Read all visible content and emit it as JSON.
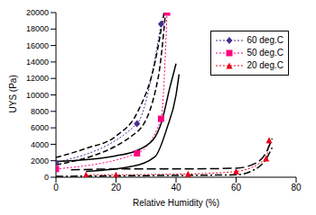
{
  "chart_data": {
    "type": "line",
    "x_label": "Relative Humidity (%)",
    "y_label": "UYS (Pa)",
    "xlim": [
      0,
      80
    ],
    "xticks": [
      0,
      20,
      40,
      60,
      80
    ],
    "ylim": [
      0,
      20000
    ],
    "yticks": [
      0,
      2000,
      4000,
      6000,
      8000,
      10000,
      12000,
      14000,
      16000,
      18000,
      20000
    ],
    "legend": "upper right",
    "grid": false,
    "series": [
      {
        "name": "60 deg.C",
        "color": "#4b2d8f",
        "marker": "diamond",
        "line_style": "dotted",
        "x": [
          0,
          27,
          35
        ],
        "values": [
          1800,
          6500,
          18600
        ]
      },
      {
        "name": "50 deg.C",
        "color": "#ff0080",
        "marker": "square",
        "line_style": "dotted",
        "x": [
          0,
          27,
          35,
          37
        ],
        "values": [
          1000,
          2900,
          7100,
          20000
        ]
      },
      {
        "name": "20 deg.C",
        "color": "#e8001c",
        "marker": "triangle",
        "line_style": "dotted",
        "x": [
          10,
          20,
          44,
          60,
          70,
          71
        ],
        "values": [
          300,
          300,
          400,
          700,
          2300,
          4500
        ]
      },
      {
        "color": "#000000",
        "line_style": "dashed",
        "x": [
          0,
          10,
          20,
          27,
          33,
          36
        ],
        "values": [
          2400,
          3500,
          5000,
          7800,
          14000,
          20000
        ]
      },
      {
        "color": "#000000",
        "line_style": "dashed",
        "x": [
          0,
          27,
          34,
          36.5
        ],
        "values": [
          1500,
          5500,
          12000,
          20000
        ]
      },
      {
        "color": "#000000",
        "line_style": "solid",
        "x": [
          0,
          20,
          30,
          35,
          38,
          40
        ],
        "values": [
          1900,
          2600,
          3800,
          6500,
          11000,
          13800
        ]
      },
      {
        "color": "#000000",
        "line_style": "solid",
        "x": [
          10,
          25,
          33,
          37,
          40,
          41
        ],
        "values": [
          700,
          1300,
          2500,
          6000,
          10000,
          12500
        ]
      },
      {
        "color": "#000000",
        "line_style": "longdash",
        "x": [
          5,
          20,
          40,
          60,
          67,
          70,
          72
        ],
        "values": [
          900,
          1000,
          1000,
          1100,
          1800,
          3000,
          4700
        ]
      },
      {
        "color": "#000000",
        "line_style": "dashdot",
        "x": [
          0,
          30,
          60,
          66,
          70,
          72
        ],
        "values": [
          100,
          200,
          300,
          900,
          2200,
          3600
        ]
      }
    ]
  }
}
